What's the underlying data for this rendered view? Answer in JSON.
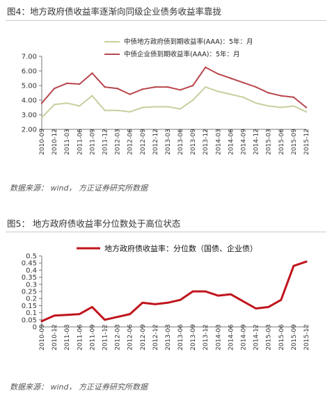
{
  "figure4": {
    "title": "图4：地方政府债收益率逐渐向同级企业债务收益率靠拢",
    "source": "数据来源： wind， 方正证券研究所数据"
  },
  "figure5": {
    "title": "图5： 地方政府债收益率分位数处于高位状态",
    "source": "数据来源： wind， 方正证券研究所数据"
  },
  "colors": {
    "muni": "#c8cf9f",
    "corp": "#b8464d",
    "pct": "#c0141c"
  },
  "chart_data": [
    {
      "type": "line",
      "title": "图4：地方政府债收益率逐渐向同级企业债务收益率靠拢",
      "x": [
        "2010-09",
        "2010-12",
        "2011-03",
        "2011-06",
        "2011-09",
        "2011-12",
        "2012-03",
        "2012-06",
        "2012-09",
        "2012-12",
        "2013-03",
        "2013-06",
        "2013-09",
        "2013-12",
        "2014-03",
        "2014-06",
        "2014-09",
        "2014-12",
        "2015-03",
        "2015-06",
        "2015-09",
        "2015-12"
      ],
      "yticks": [
        "7.00",
        "6.00",
        "5.00",
        "4.00",
        "3.00",
        "2.00"
      ],
      "ylim": [
        2,
        7
      ],
      "legend_position": "top-center",
      "grid": false,
      "series": [
        {
          "name": "中债地方政府债到期收益率(AAA)：5年：月",
          "values": [
            2.8,
            3.7,
            3.8,
            3.6,
            4.3,
            3.3,
            3.3,
            3.2,
            3.5,
            3.55,
            3.55,
            3.4,
            4.0,
            4.9,
            4.6,
            4.4,
            4.2,
            3.8,
            3.6,
            3.5,
            3.6,
            3.2
          ]
        },
        {
          "name": "中债企业债到期收益率(AAA)：5年：月",
          "values": [
            3.8,
            4.8,
            5.15,
            5.1,
            5.85,
            4.9,
            4.8,
            4.4,
            4.75,
            4.9,
            4.9,
            4.7,
            5.0,
            6.25,
            5.8,
            5.5,
            5.2,
            4.9,
            4.5,
            4.3,
            4.2,
            3.5
          ]
        }
      ]
    },
    {
      "type": "line",
      "title": "图5： 地方政府债收益率分位数处于高位状态",
      "x": [
        "2010-09",
        "2010-12",
        "2011-03",
        "2011-06",
        "2011-09",
        "2011-12",
        "2012-03",
        "2012-06",
        "2012-09",
        "2012-12",
        "2013-03",
        "2013-06",
        "2013-09",
        "2013-12",
        "2014-03",
        "2014-06",
        "2014-09",
        "2014-12",
        "2015-03",
        "2015-06",
        "2015-09",
        "2015-12"
      ],
      "yticks": [
        "0.5",
        "0.45",
        "0.4",
        "0.35",
        "0.3",
        "0.25",
        "0.2",
        "0.15",
        "0.1",
        "0.05",
        "0"
      ],
      "ylim": [
        0,
        0.5
      ],
      "legend_position": "top-center",
      "grid": false,
      "series": [
        {
          "name": "地方政府债收益率：分位数（国债、企业债）",
          "values": [
            0.04,
            0.08,
            0.085,
            0.09,
            0.14,
            0.05,
            0.07,
            0.09,
            0.17,
            0.16,
            0.17,
            0.19,
            0.25,
            0.25,
            0.22,
            0.23,
            0.18,
            0.13,
            0.14,
            0.19,
            0.43,
            0.46
          ]
        }
      ]
    }
  ]
}
